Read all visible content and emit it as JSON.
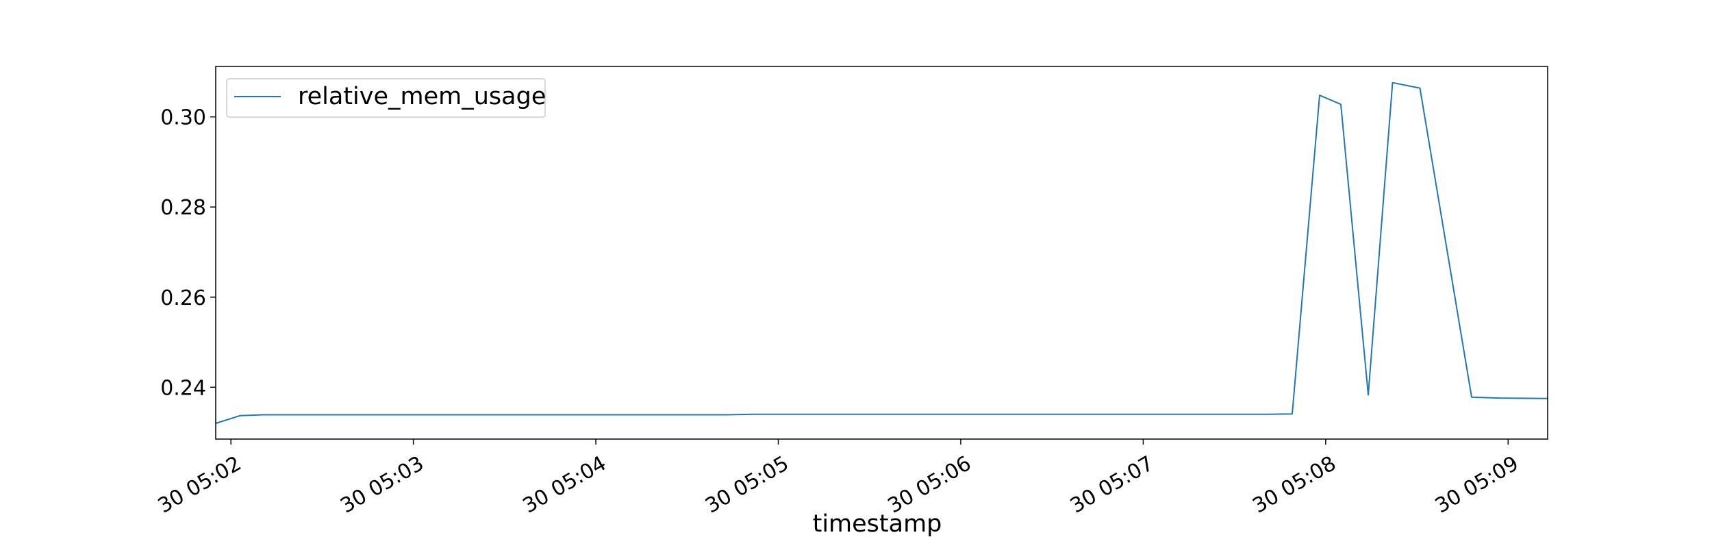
{
  "chart_data": {
    "type": "line",
    "title": "",
    "xlabel": "timestamp",
    "ylabel": "",
    "x_ticks": [
      "30 05:02",
      "30 05:03",
      "30 05:04",
      "30 05:05",
      "30 05:06",
      "30 05:07",
      "30 05:08",
      "30 05:09"
    ],
    "y_ticks": [
      "0.24",
      "0.26",
      "0.28",
      "0.30"
    ],
    "xlim": [
      "05:01:55",
      "05:09:13"
    ],
    "ylim": [
      0.2285,
      0.3112
    ],
    "grid": false,
    "legend": "top-left",
    "series": [
      {
        "name": "relative_mem_usage",
        "color": "#1f77b4",
        "x": [
          "05:01:55",
          "05:02:03",
          "05:02:11",
          "05:02:20",
          "05:02:29",
          "05:02:38",
          "05:02:47",
          "05:02:56",
          "05:03:05",
          "05:03:14",
          "05:03:22",
          "05:03:31",
          "05:03:40",
          "05:03:49",
          "05:03:58",
          "05:04:07",
          "05:04:16",
          "05:04:25",
          "05:04:34",
          "05:04:43",
          "05:04:52",
          "05:05:01",
          "05:05:10",
          "05:05:18",
          "05:05:27",
          "05:05:36",
          "05:05:45",
          "05:05:54",
          "05:06:03",
          "05:06:12",
          "05:06:21",
          "05:06:29",
          "05:06:38",
          "05:06:47",
          "05:06:56",
          "05:07:05",
          "05:07:14",
          "05:07:23",
          "05:07:32",
          "05:07:41",
          "05:07:49",
          "05:07:58",
          "05:08:05",
          "05:08:14",
          "05:08:22",
          "05:08:31",
          "05:08:48",
          "05:08:57",
          "05:09:13"
        ],
        "values": [
          0.232,
          0.2337,
          0.2339,
          0.2339,
          0.2339,
          0.2339,
          0.2339,
          0.2339,
          0.2339,
          0.2339,
          0.2339,
          0.2339,
          0.2339,
          0.2339,
          0.2339,
          0.2339,
          0.2339,
          0.2339,
          0.2339,
          0.2339,
          0.234,
          0.234,
          0.234,
          0.234,
          0.234,
          0.234,
          0.234,
          0.234,
          0.234,
          0.234,
          0.234,
          0.234,
          0.234,
          0.234,
          0.234,
          0.234,
          0.234,
          0.234,
          0.234,
          0.234,
          0.2341,
          0.3048,
          0.3028,
          0.2383,
          0.3076,
          0.3064,
          0.2378,
          0.2376,
          0.2375
        ]
      }
    ]
  }
}
